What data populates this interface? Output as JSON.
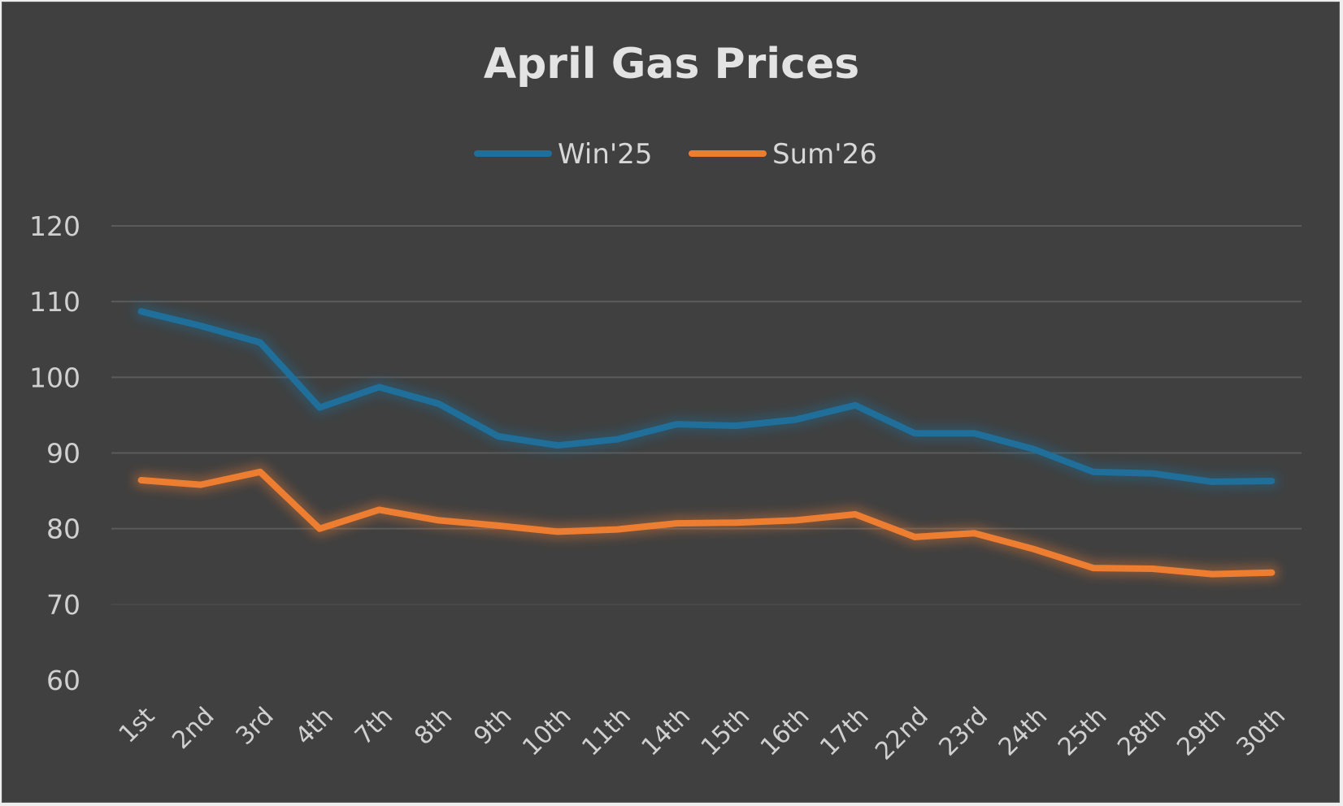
{
  "chart_data": {
    "type": "line",
    "title": "April Gas Prices",
    "xlabel": "",
    "ylabel": "",
    "categories": [
      "1st",
      "2nd",
      "3rd",
      "4th",
      "7th",
      "8th",
      "9th",
      "10th",
      "11th",
      "14th",
      "15th",
      "16th",
      "17th",
      "22nd",
      "23rd",
      "24th",
      "25th",
      "28th",
      "29th",
      "30th"
    ],
    "series": [
      {
        "name": "Win'25",
        "color": "#1f6f9a",
        "values": [
          108.7,
          106.8,
          104.6,
          96.0,
          98.7,
          96.5,
          92.2,
          91.0,
          91.8,
          93.8,
          93.6,
          94.4,
          96.3,
          92.6,
          92.6,
          90.5,
          87.5,
          87.3,
          86.2,
          86.3
        ]
      },
      {
        "name": "Sum'26",
        "color": "#ed7d31",
        "values": [
          86.4,
          85.8,
          87.5,
          80.0,
          82.5,
          81.1,
          80.4,
          79.6,
          79.9,
          80.7,
          80.8,
          81.1,
          81.9,
          78.9,
          79.4,
          77.3,
          74.8,
          74.7,
          74.0,
          74.2
        ]
      }
    ],
    "ylim": [
      60,
      120
    ],
    "yticks": [
      60,
      70,
      80,
      90,
      100,
      110,
      120
    ],
    "grid": true,
    "legend_position": "top"
  }
}
